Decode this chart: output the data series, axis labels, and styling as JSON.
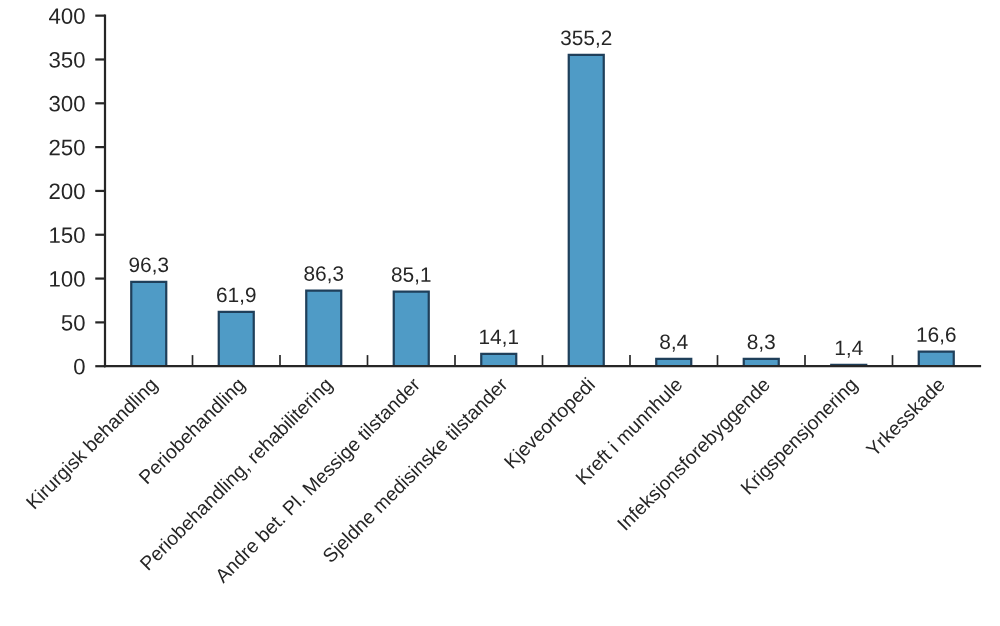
{
  "chart_data": {
    "type": "bar",
    "categories": [
      "Kirurgisk behandling",
      "Periobehandling",
      "Periobehandling, rehabilitering",
      "Andre bet. Pl. Messige tilstander",
      "Sjeldne medisinske tilstander",
      "Kjeveortopedi",
      "Kreft i munnhule",
      "Infeksjonsforebyggende",
      "Krigspensjonering",
      "Yrkesskade"
    ],
    "values": [
      96.3,
      61.9,
      86.3,
      85.1,
      14.1,
      355.2,
      8.4,
      8.3,
      1.4,
      16.6
    ],
    "value_labels": [
      "96,3",
      "61,9",
      "86,3",
      "85,1",
      "14,1",
      "355,2",
      "8,4",
      "8,3",
      "1,4",
      "16,6"
    ],
    "color": "#4f9bc6",
    "ylim": [
      0,
      400
    ],
    "yticks": [
      0,
      50,
      100,
      150,
      200,
      250,
      300,
      350,
      400
    ],
    "grid": false
  }
}
